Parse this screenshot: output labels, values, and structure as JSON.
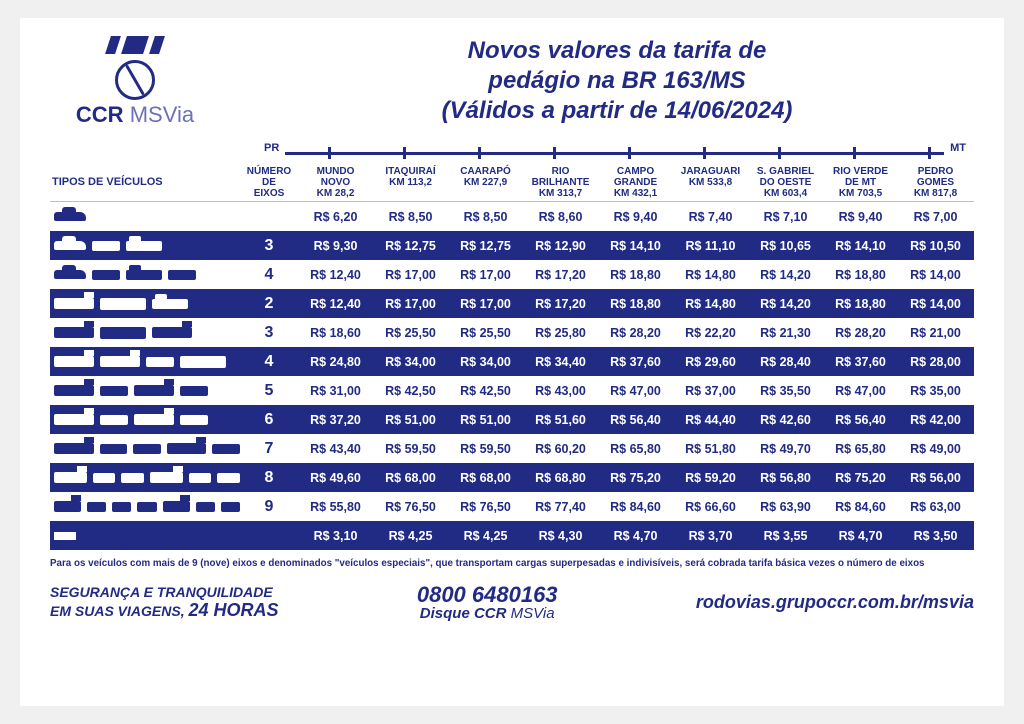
{
  "brand": {
    "main": "CCR",
    "sub": "MSVia"
  },
  "title_lines": [
    "Novos valores da tarifa de",
    "pedágio na BR 163/MS",
    "(Válidos a partir de 14/06/2024)"
  ],
  "axis": {
    "left": "PR",
    "right": "MT"
  },
  "headers": {
    "vehicles": "TIPOS DE VEÍCULOS",
    "axles": [
      "NÚMERO",
      "DE",
      "EIXOS"
    ],
    "plazas": [
      {
        "name": "MUNDO NOVO",
        "km": "KM 28,2"
      },
      {
        "name": "ITAQUIRAÍ",
        "km": "KM 113,2"
      },
      {
        "name": "CAARAPÓ",
        "km": "KM 227,9"
      },
      {
        "name": "RIO BRILHANTE",
        "km": "KM 313,7"
      },
      {
        "name": "CAMPO GRANDE",
        "km": "KM 432,1"
      },
      {
        "name": "JARAGUARI",
        "km": "KM 533,8"
      },
      {
        "name": "S. GABRIEL DO OESTE",
        "km": "KM 603,4"
      },
      {
        "name": "RIO VERDE DE MT",
        "km": "KM 703,5"
      },
      {
        "name": "PEDRO GOMES",
        "km": "KM 817,8"
      }
    ]
  },
  "rows": [
    {
      "axles": "",
      "alt": false,
      "icons": [
        "car"
      ],
      "prices": [
        "R$ 6,20",
        "R$ 8,50",
        "R$ 8,50",
        "R$ 8,60",
        "R$ 9,40",
        "R$ 7,40",
        "R$ 7,10",
        "R$ 9,40",
        "R$ 7,00"
      ]
    },
    {
      "axles": "3",
      "alt": true,
      "icons": [
        "car",
        "trailer",
        "pickup"
      ],
      "prices": [
        "R$ 9,30",
        "R$ 12,75",
        "R$ 12,75",
        "R$ 12,90",
        "R$ 14,10",
        "R$ 11,10",
        "R$ 10,65",
        "R$ 14,10",
        "R$ 10,50"
      ]
    },
    {
      "axles": "4",
      "alt": false,
      "icons": [
        "car",
        "trailer",
        "pickup",
        "trailer"
      ],
      "prices": [
        "R$ 12,40",
        "R$ 17,00",
        "R$ 17,00",
        "R$ 17,20",
        "R$ 18,80",
        "R$ 14,80",
        "R$ 14,20",
        "R$ 18,80",
        "R$ 14,00"
      ]
    },
    {
      "axles": "2",
      "alt": true,
      "icons": [
        "truck",
        "bus",
        "pickup"
      ],
      "prices": [
        "R$ 12,40",
        "R$ 17,00",
        "R$ 17,00",
        "R$ 17,20",
        "R$ 18,80",
        "R$ 14,80",
        "R$ 14,20",
        "R$ 18,80",
        "R$ 14,00"
      ]
    },
    {
      "axles": "3",
      "alt": false,
      "icons": [
        "truck",
        "bus",
        "truck"
      ],
      "prices": [
        "R$ 18,60",
        "R$ 25,50",
        "R$ 25,50",
        "R$ 25,80",
        "R$ 28,20",
        "R$ 22,20",
        "R$ 21,30",
        "R$ 28,20",
        "R$ 21,00"
      ]
    },
    {
      "axles": "4",
      "alt": true,
      "icons": [
        "truck",
        "truck",
        "trailer",
        "bus"
      ],
      "prices": [
        "R$ 24,80",
        "R$ 34,00",
        "R$ 34,00",
        "R$ 34,40",
        "R$ 37,60",
        "R$ 29,60",
        "R$ 28,40",
        "R$ 37,60",
        "R$ 28,00"
      ]
    },
    {
      "axles": "5",
      "alt": false,
      "icons": [
        "truck",
        "trailer",
        "truck",
        "trailer"
      ],
      "prices": [
        "R$ 31,00",
        "R$ 42,50",
        "R$ 42,50",
        "R$ 43,00",
        "R$ 47,00",
        "R$ 37,00",
        "R$ 35,50",
        "R$ 47,00",
        "R$ 35,00"
      ]
    },
    {
      "axles": "6",
      "alt": true,
      "icons": [
        "truck",
        "trailer",
        "truck",
        "trailer"
      ],
      "prices": [
        "R$ 37,20",
        "R$ 51,00",
        "R$ 51,00",
        "R$ 51,60",
        "R$ 56,40",
        "R$ 44,40",
        "R$ 42,60",
        "R$ 56,40",
        "R$ 42,00"
      ]
    },
    {
      "axles": "7",
      "alt": false,
      "icons": [
        "truck",
        "trailer",
        "trailer",
        "truck",
        "trailer"
      ],
      "prices": [
        "R$ 43,40",
        "R$ 59,50",
        "R$ 59,50",
        "R$ 60,20",
        "R$ 65,80",
        "R$ 51,80",
        "R$ 49,70",
        "R$ 65,80",
        "R$ 49,00"
      ]
    },
    {
      "axles": "8",
      "alt": true,
      "icons": [
        "truck",
        "trailer",
        "trailer",
        "truck",
        "trailer",
        "trailer"
      ],
      "prices": [
        "R$ 49,60",
        "R$ 68,00",
        "R$ 68,00",
        "R$ 68,80",
        "R$ 75,20",
        "R$ 59,20",
        "R$ 56,80",
        "R$ 75,20",
        "R$ 56,00"
      ]
    },
    {
      "axles": "9",
      "alt": false,
      "icons": [
        "truck",
        "trailer",
        "trailer",
        "trailer",
        "truck",
        "trailer",
        "trailer"
      ],
      "prices": [
        "R$ 55,80",
        "R$ 76,50",
        "R$ 76,50",
        "R$ 77,40",
        "R$ 84,60",
        "R$ 66,60",
        "R$ 63,90",
        "R$ 84,60",
        "R$ 63,00"
      ]
    },
    {
      "axles": "",
      "alt": true,
      "icons": [
        "moto"
      ],
      "prices": [
        "R$ 3,10",
        "R$ 4,25",
        "R$ 4,25",
        "R$ 4,30",
        "R$ 4,70",
        "R$ 3,70",
        "R$ 3,55",
        "R$ 4,70",
        "R$ 3,50"
      ]
    }
  ],
  "footnote": "Para os veículos com mais de 9 (nove) eixos e denominados \"veículos especiais\", que transportam cargas superpesadas e indivisíveis, será  cobrada tarifa básica vezes o número de eixos",
  "footer": {
    "left1": "SEGURANÇA E TRANQUILIDADE",
    "left2a": "EM SUAS VIAGENS,",
    "left2b": "24 HORAS",
    "phone": "0800 6480163",
    "disque_a": "Disque CCR",
    "disque_b": "MSVia",
    "url": "rodovias.grupoccr.com.br/msvia"
  },
  "colors": {
    "primary": "#212b84",
    "bg": "#ffffff"
  }
}
